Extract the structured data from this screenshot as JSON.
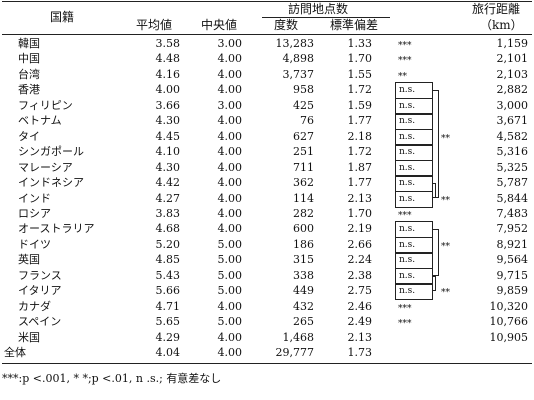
{
  "headers": {
    "country": "国籍",
    "mean": "平均値",
    "median": "中央値",
    "visits_title": "訪問地点数",
    "frequency": "度数",
    "sd": "標準偏差",
    "distance": "旅行距離",
    "distance_unit": "（km）"
  },
  "rows": [
    {
      "country": "韓国",
      "mean": "3.58",
      "median": "3.00",
      "freq": "13,283",
      "sd": "1.33",
      "dist": "1,159"
    },
    {
      "country": "中国",
      "mean": "4.48",
      "median": "4.00",
      "freq": "4,898",
      "sd": "1.70",
      "dist": "2,101"
    },
    {
      "country": "台湾",
      "mean": "4.16",
      "median": "4.00",
      "freq": "3,737",
      "sd": "1.55",
      "dist": "2,103"
    },
    {
      "country": "香港",
      "mean": "4.00",
      "median": "4.00",
      "freq": "958",
      "sd": "1.72",
      "dist": "2,882"
    },
    {
      "country": "フィリピン",
      "mean": "3.66",
      "median": "3.00",
      "freq": "425",
      "sd": "1.59",
      "dist": "3,000"
    },
    {
      "country": "ベトナム",
      "mean": "4.30",
      "median": "4.00",
      "freq": "76",
      "sd": "1.77",
      "dist": "3,671"
    },
    {
      "country": "タイ",
      "mean": "4.45",
      "median": "4.00",
      "freq": "627",
      "sd": "2.18",
      "dist": "4,582"
    },
    {
      "country": "シンガポール",
      "mean": "4.10",
      "median": "4.00",
      "freq": "251",
      "sd": "1.72",
      "dist": "5,316"
    },
    {
      "country": "マレーシア",
      "mean": "4.30",
      "median": "4.00",
      "freq": "711",
      "sd": "1.87",
      "dist": "5,325"
    },
    {
      "country": "インドネシア",
      "mean": "4.42",
      "median": "4.00",
      "freq": "362",
      "sd": "1.77",
      "dist": "5,787"
    },
    {
      "country": "インド",
      "mean": "4.27",
      "median": "4.00",
      "freq": "114",
      "sd": "2.13",
      "dist": "5,844"
    },
    {
      "country": "ロシア",
      "mean": "3.83",
      "median": "4.00",
      "freq": "282",
      "sd": "1.70",
      "dist": "7,483"
    },
    {
      "country": "オーストラリア",
      "mean": "4.68",
      "median": "4.00",
      "freq": "600",
      "sd": "2.19",
      "dist": "7,952"
    },
    {
      "country": "ドイツ",
      "mean": "5.20",
      "median": "5.00",
      "freq": "186",
      "sd": "2.66",
      "dist": "8,921"
    },
    {
      "country": "英国",
      "mean": "4.85",
      "median": "5.00",
      "freq": "315",
      "sd": "2.24",
      "dist": "9,564"
    },
    {
      "country": "フランス",
      "mean": "5.43",
      "median": "5.00",
      "freq": "338",
      "sd": "2.38",
      "dist": "9,715"
    },
    {
      "country": "イタリア",
      "mean": "5.66",
      "median": "5.00",
      "freq": "449",
      "sd": "2.75",
      "dist": "9,859"
    },
    {
      "country": "カナダ",
      "mean": "4.71",
      "median": "4.00",
      "freq": "432",
      "sd": "2.46",
      "dist": "10,320"
    },
    {
      "country": "スペイン",
      "mean": "5.65",
      "median": "5.00",
      "freq": "265",
      "sd": "2.49",
      "dist": "10,766"
    },
    {
      "country": "米国",
      "mean": "4.29",
      "median": "4.00",
      "freq": "1,468",
      "sd": "2.13",
      "dist": "10,905"
    }
  ],
  "total": {
    "country": "全体",
    "mean": "4.04",
    "median": "4.00",
    "freq": "29,777",
    "sd": "1.73"
  },
  "significance": {
    "marks": [
      {
        "row": 0,
        "text": "***"
      },
      {
        "row": 1,
        "text": "***"
      },
      {
        "row": 2,
        "text": "**"
      },
      {
        "row": 11,
        "text": "***"
      },
      {
        "row": 17,
        "text": "***"
      },
      {
        "row": 18,
        "text": "***"
      }
    ],
    "ns_boxes": [
      {
        "row": 3,
        "text": "n.s."
      },
      {
        "row": 4,
        "text": "n.s."
      },
      {
        "row": 5,
        "text": "n.s."
      },
      {
        "row": 6,
        "text": "n.s."
      },
      {
        "row": 7,
        "text": "n.s."
      },
      {
        "row": 8,
        "text": "n.s."
      },
      {
        "row": 9,
        "text": "n.s."
      },
      {
        "row": 10,
        "text": "n.s."
      },
      {
        "row": 12,
        "text": "n.s."
      },
      {
        "row": 13,
        "text": "n.s."
      },
      {
        "row": 14,
        "text": "n.s."
      },
      {
        "row": 15,
        "text": "n.s."
      },
      {
        "row": 16,
        "text": "n.s."
      }
    ],
    "brackets": [
      {
        "from": 3,
        "to": 10,
        "label_row": 6,
        "label": "**"
      },
      {
        "from": 9,
        "to": 10,
        "label_row": 10,
        "label": "**"
      },
      {
        "from": 12,
        "to": 15,
        "label_row": 13,
        "label": "**"
      },
      {
        "from": 15,
        "to": 16,
        "label_row": 16,
        "label": "**"
      }
    ]
  },
  "footnote": "***:p <.001, *  *;p <.01, n  .s.; 有意差なし"
}
